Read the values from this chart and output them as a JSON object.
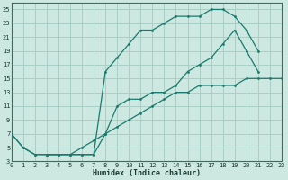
{
  "background_color": "#cce8e0",
  "grid_color": "#a8cfc7",
  "line_color": "#1a7a6e",
  "xlabel": "Humidex (Indice chaleur)",
  "xlim": [
    0,
    23
  ],
  "ylim": [
    3,
    26
  ],
  "xticks": [
    0,
    1,
    2,
    3,
    4,
    5,
    6,
    7,
    8,
    9,
    10,
    11,
    12,
    13,
    14,
    15,
    16,
    17,
    18,
    19,
    20,
    21,
    22,
    23
  ],
  "yticks": [
    3,
    5,
    7,
    9,
    11,
    13,
    15,
    17,
    19,
    21,
    23,
    25
  ],
  "line_top_x": [
    0,
    1,
    2,
    3,
    4,
    5,
    6,
    7,
    8,
    9,
    10,
    11,
    12,
    13,
    14,
    15,
    16,
    17,
    18,
    19,
    20,
    21
  ],
  "line_top_y": [
    7,
    5,
    4,
    4,
    4,
    4,
    4,
    4,
    16,
    18,
    20,
    22,
    22,
    23,
    24,
    24,
    24,
    25,
    25,
    24,
    22,
    19
  ],
  "line_mid_x": [
    3,
    4,
    5,
    6,
    7,
    8,
    9,
    10,
    11,
    12,
    13,
    14,
    15,
    16,
    17,
    18,
    19,
    20,
    21,
    22,
    23
  ],
  "line_mid_y": [
    4,
    4,
    4,
    4,
    4,
    7,
    11,
    12,
    12,
    13,
    13,
    14,
    16,
    17,
    18,
    20,
    22,
    19,
    16,
    null,
    null
  ],
  "line_low_x": [
    0,
    1,
    2,
    3,
    4,
    5,
    6,
    7,
    8,
    9,
    10,
    11,
    12,
    13,
    14,
    15,
    16,
    17,
    18,
    19,
    20,
    21,
    22,
    23
  ],
  "line_low_y": [
    7,
    5,
    4,
    4,
    4,
    4,
    5,
    6,
    7,
    8,
    9,
    10,
    11,
    12,
    13,
    13,
    14,
    14,
    14,
    14,
    15,
    15,
    15,
    15
  ]
}
